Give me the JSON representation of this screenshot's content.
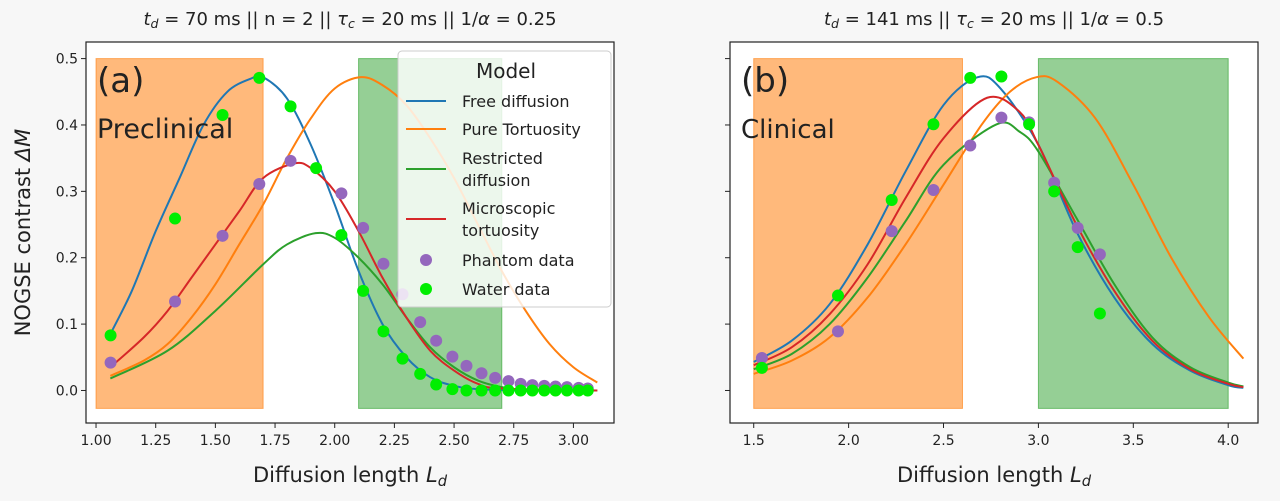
{
  "chart_data": [
    {
      "type": "line",
      "title": "t_d = 70 ms  ||  n = 2  ||  τ_c = 20 ms  ||  1/α = 0.25",
      "panel_label": "(a)",
      "region_label": "Preclinical",
      "xlabel": "Diffusion length L_d",
      "ylabel": "NOGSE contrast ΔM",
      "xlim": [
        0.958,
        3.17
      ],
      "ylim": [
        -0.049,
        0.525
      ],
      "xticks": [
        "1.00",
        "1.25",
        "1.50",
        "1.75",
        "2.00",
        "2.25",
        "2.50",
        "2.75",
        "3.00"
      ],
      "yticks": [
        "0.0",
        "0.1",
        "0.2",
        "0.3",
        "0.4",
        "0.5"
      ],
      "grid": false,
      "shaded_regions": [
        {
          "x": [
            1.0,
            1.7
          ],
          "y": [
            -0.027,
            0.5
          ],
          "color": "#ff7f0e",
          "opacity": 0.55
        },
        {
          "x": [
            2.1,
            2.7
          ],
          "y": [
            -0.027,
            0.5
          ],
          "color": "#2ca02c",
          "opacity": 0.5
        }
      ],
      "legend": {
        "title": "Model",
        "placement": "upper-right",
        "entries": [
          {
            "label": [
              "Free diffusion"
            ],
            "kind": "line",
            "color": "#1f77b4"
          },
          {
            "label": [
              "Pure Tortuosity"
            ],
            "kind": "line",
            "color": "#ff7f0e"
          },
          {
            "label": [
              "Restricted",
              "diffusion"
            ],
            "kind": "line",
            "color": "#2ca02c"
          },
          {
            "label": [
              "Microscopic",
              "tortuosity"
            ],
            "kind": "line",
            "color": "#d62728"
          },
          {
            "label": [
              "Phantom data"
            ],
            "kind": "dot",
            "color": "#9467bd"
          },
          {
            "label": [
              "Water data"
            ],
            "kind": "dot",
            "color": "#00ee00"
          }
        ]
      },
      "series": [
        {
          "name": "Free diffusion",
          "kind": "line",
          "color": "#1f77b4",
          "x": [
            1.06,
            1.15,
            1.25,
            1.35,
            1.45,
            1.55,
            1.65,
            1.7,
            1.8,
            1.9,
            2.0,
            2.1,
            2.2,
            2.3,
            2.4,
            2.5,
            2.6,
            2.8,
            3.08
          ],
          "y": [
            0.085,
            0.15,
            0.24,
            0.32,
            0.4,
            0.45,
            0.47,
            0.472,
            0.44,
            0.37,
            0.28,
            0.18,
            0.1,
            0.05,
            0.02,
            0.007,
            0.002,
            0.0,
            0.0
          ]
        },
        {
          "name": "Pure Tortuosity",
          "kind": "line",
          "color": "#ff7f0e",
          "x": [
            1.06,
            1.2,
            1.3,
            1.4,
            1.5,
            1.6,
            1.7,
            1.8,
            1.9,
            2.0,
            2.11,
            2.2,
            2.3,
            2.4,
            2.5,
            2.6,
            2.7,
            2.8,
            2.9,
            3.0,
            3.1
          ],
          "y": [
            0.022,
            0.045,
            0.07,
            0.11,
            0.16,
            0.22,
            0.28,
            0.35,
            0.41,
            0.455,
            0.472,
            0.46,
            0.43,
            0.38,
            0.32,
            0.25,
            0.18,
            0.12,
            0.07,
            0.035,
            0.012
          ]
        },
        {
          "name": "Restricted diffusion",
          "kind": "line",
          "color": "#2ca02c",
          "x": [
            1.06,
            1.3,
            1.5,
            1.7,
            1.8,
            1.92,
            2.0,
            2.1,
            2.2,
            2.3,
            2.4,
            2.5,
            2.6,
            2.7,
            2.8,
            3.1
          ],
          "y": [
            0.018,
            0.06,
            0.12,
            0.19,
            0.22,
            0.237,
            0.23,
            0.2,
            0.16,
            0.11,
            0.065,
            0.035,
            0.015,
            0.005,
            0.001,
            0.0
          ]
        },
        {
          "name": "Microscopic tortuosity",
          "kind": "line",
          "color": "#d62728",
          "x": [
            1.06,
            1.2,
            1.3,
            1.4,
            1.5,
            1.6,
            1.7,
            1.83,
            1.9,
            2.0,
            2.1,
            2.2,
            2.3,
            2.4,
            2.5,
            2.6,
            2.7,
            3.1
          ],
          "y": [
            0.035,
            0.08,
            0.12,
            0.17,
            0.22,
            0.27,
            0.32,
            0.342,
            0.335,
            0.3,
            0.24,
            0.17,
            0.11,
            0.06,
            0.03,
            0.01,
            0.003,
            0.0
          ]
        },
        {
          "name": "Phantom data",
          "kind": "scatter",
          "color": "#9467bd",
          "x": [
            1.061,
            1.331,
            1.53,
            1.684,
            1.815,
            2.028,
            2.119,
            2.204,
            2.284,
            2.358,
            2.425,
            2.493,
            2.552,
            2.615,
            2.672,
            2.728,
            2.779,
            2.828,
            2.878,
            2.925,
            2.973,
            3.022,
            3.06
          ],
          "y": [
            0.042,
            0.134,
            0.233,
            0.311,
            0.346,
            0.297,
            0.245,
            0.191,
            0.145,
            0.103,
            0.075,
            0.051,
            0.037,
            0.026,
            0.019,
            0.014,
            0.01,
            0.008,
            0.007,
            0.006,
            0.005,
            0.004,
            0.003
          ]
        },
        {
          "name": "Water data",
          "kind": "scatter",
          "color": "#00ee00",
          "x": [
            1.061,
            1.331,
            1.53,
            1.684,
            1.815,
            1.922,
            2.028,
            2.119,
            2.204,
            2.284,
            2.358,
            2.425,
            2.493,
            2.552,
            2.615,
            2.672,
            2.728,
            2.779,
            2.828,
            2.878,
            2.925,
            2.973,
            3.022,
            3.06
          ],
          "y": [
            0.083,
            0.259,
            0.415,
            0.471,
            0.428,
            0.335,
            0.234,
            0.15,
            0.089,
            0.048,
            0.025,
            0.009,
            0.002,
            0.0,
            0.0,
            0.0,
            0.0,
            0.0,
            0.0,
            0.0,
            0.0,
            0.0,
            0.0,
            0.0
          ]
        }
      ]
    },
    {
      "type": "line",
      "title": "t_d = 141 ms ||  τ_c = 20 ms  ||  1/α = 0.5",
      "panel_label": "(b)",
      "region_label": "Clinical",
      "xlabel": "Diffusion length L_d",
      "xlim": [
        1.375,
        4.157
      ],
      "ylim": [
        -0.049,
        0.525
      ],
      "xticks": [
        "1.5",
        "2.0",
        "2.5",
        "3.0",
        "3.5",
        "4.0"
      ],
      "yticks_shared": true,
      "grid": false,
      "shaded_regions": [
        {
          "x": [
            1.5,
            2.6
          ],
          "y": [
            -0.027,
            0.5
          ],
          "color": "#ff7f0e",
          "opacity": 0.55
        },
        {
          "x": [
            3.0,
            4.0
          ],
          "y": [
            -0.027,
            0.5
          ],
          "color": "#2ca02c",
          "opacity": 0.5
        }
      ],
      "series": [
        {
          "name": "Free diffusion",
          "kind": "line",
          "color": "#1f77b4",
          "x": [
            1.5,
            1.7,
            1.9,
            2.1,
            2.3,
            2.5,
            2.68,
            2.8,
            3.0,
            3.2,
            3.4,
            3.6,
            3.8,
            4.0,
            4.08
          ],
          "y": [
            0.043,
            0.075,
            0.13,
            0.22,
            0.33,
            0.43,
            0.472,
            0.455,
            0.37,
            0.24,
            0.14,
            0.07,
            0.03,
            0.008,
            0.004
          ]
        },
        {
          "name": "Pure Tortuosity",
          "kind": "line",
          "color": "#ff7f0e",
          "x": [
            1.5,
            1.7,
            1.9,
            2.1,
            2.3,
            2.5,
            2.7,
            2.85,
            2.99,
            3.1,
            3.3,
            3.5,
            3.7,
            3.9,
            4.08
          ],
          "y": [
            0.025,
            0.045,
            0.08,
            0.14,
            0.22,
            0.31,
            0.4,
            0.45,
            0.472,
            0.465,
            0.41,
            0.31,
            0.2,
            0.11,
            0.048
          ]
        },
        {
          "name": "Restricted diffusion",
          "kind": "line",
          "color": "#2ca02c",
          "x": [
            1.5,
            1.7,
            1.9,
            2.1,
            2.3,
            2.5,
            2.78,
            2.9,
            3.0,
            3.2,
            3.4,
            3.6,
            3.8,
            4.0,
            4.08
          ],
          "y": [
            0.032,
            0.055,
            0.1,
            0.17,
            0.255,
            0.34,
            0.401,
            0.39,
            0.36,
            0.26,
            0.16,
            0.08,
            0.035,
            0.012,
            0.006
          ]
        },
        {
          "name": "Microscopic tortuosity",
          "kind": "line",
          "color": "#d62728",
          "x": [
            1.5,
            1.7,
            1.9,
            2.1,
            2.3,
            2.5,
            2.73,
            2.9,
            3.0,
            3.2,
            3.4,
            3.6,
            3.8,
            4.0,
            4.08
          ],
          "y": [
            0.038,
            0.065,
            0.115,
            0.19,
            0.29,
            0.38,
            0.441,
            0.42,
            0.37,
            0.25,
            0.15,
            0.075,
            0.032,
            0.01,
            0.005
          ]
        },
        {
          "name": "Phantom data",
          "kind": "scatter",
          "color": "#9467bd",
          "x": [
            1.543,
            1.944,
            2.227,
            2.447,
            2.641,
            2.805,
            2.951,
            3.083,
            3.207,
            3.324
          ],
          "y": [
            0.049,
            0.089,
            0.24,
            0.302,
            0.369,
            0.411,
            0.404,
            0.313,
            0.245,
            0.205
          ]
        },
        {
          "name": "Water data",
          "kind": "scatter",
          "color": "#00ee00",
          "x": [
            1.543,
            1.944,
            2.227,
            2.447,
            2.641,
            2.805,
            2.951,
            3.083,
            3.207,
            3.324
          ],
          "y": [
            0.034,
            0.143,
            0.287,
            0.401,
            0.471,
            0.473,
            0.401,
            0.3,
            0.216,
            0.116
          ]
        }
      ]
    }
  ]
}
